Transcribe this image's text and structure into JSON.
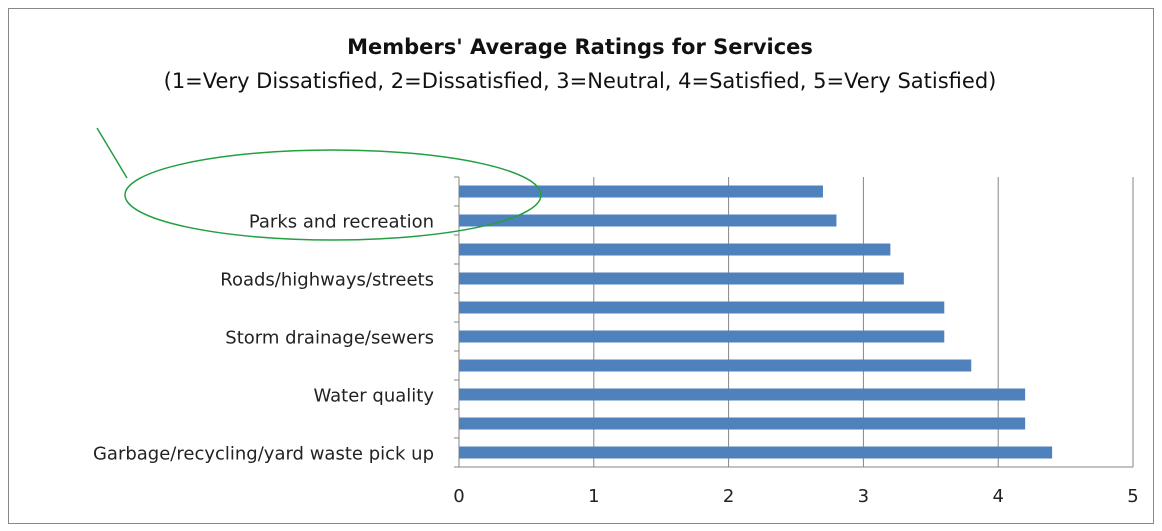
{
  "chart_data": {
    "type": "barh",
    "title": "Members' Average Ratings for Services",
    "subtitle": "(1=Very Dissatisfied, 2=Dissatisfied, 3=Neutral, 4=Satisfied, 5=Very Satisfied)",
    "categories": [
      "Garbage/recycling/yard waste pick up",
      null,
      "Water quality",
      null,
      "Storm drainage/sewers",
      null,
      "Roads/highways/streets",
      null,
      "Parks and recreation",
      null
    ],
    "values": [
      4.4,
      4.2,
      4.2,
      3.8,
      3.6,
      3.6,
      3.3,
      3.2,
      2.8,
      2.7
    ],
    "color": "#4f81bd",
    "xlim": [
      0,
      5
    ],
    "xticks": [
      0,
      1,
      2,
      3,
      4,
      5
    ],
    "grid": true
  }
}
